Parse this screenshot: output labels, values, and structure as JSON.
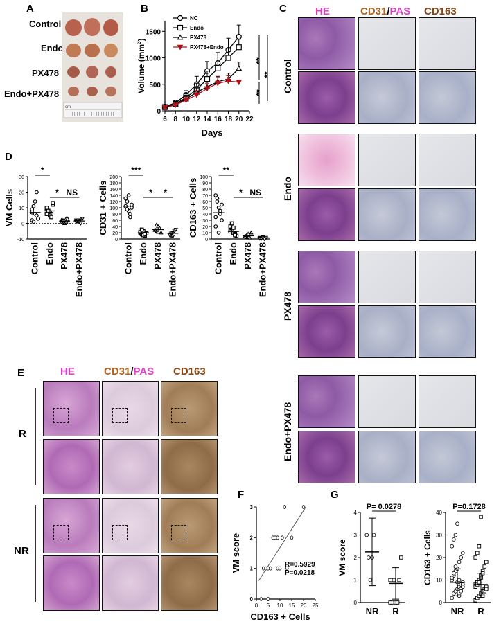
{
  "colors": {
    "he": "#e040c8",
    "cd31": "#b5651d",
    "cd163": "#8b4513",
    "pas": "#e040c8",
    "red_series": "#b0121b"
  },
  "panels": {
    "A": "A",
    "B": "B",
    "C": "C",
    "D": "D",
    "E": "E",
    "F": "F",
    "G": "G"
  },
  "panelA": {
    "rows": [
      "Control",
      "Endo",
      "PX478",
      "Endo+PX478"
    ],
    "ruler": "cm"
  },
  "panelB": {
    "ylabel_main": "Volume",
    "ylabel_unit": "(mm",
    "ylabel_sup": "3",
    "ylabel_close": ")",
    "xlabel": "Days",
    "sig": [
      "**",
      "**",
      "**"
    ],
    "chart_data": {
      "type": "line",
      "x": [
        6,
        8,
        10,
        12,
        14,
        16,
        18,
        20
      ],
      "xticks": [
        "6",
        "8",
        "10",
        "12",
        "14",
        "16",
        "18",
        "20",
        "22"
      ],
      "yticks": [
        "0",
        "500",
        "1000",
        "1500"
      ],
      "xlim": [
        6,
        22
      ],
      "ylim": [
        0,
        1700
      ],
      "series": [
        {
          "name": "NC",
          "marker": "circle",
          "values": [
            80,
            150,
            300,
            500,
            750,
            900,
            1150,
            1400
          ],
          "err": [
            30,
            40,
            80,
            150,
            180,
            200,
            220,
            220
          ]
        },
        {
          "name": "Endo",
          "marker": "square",
          "values": [
            70,
            130,
            250,
            400,
            600,
            800,
            1000,
            1200
          ],
          "err": [
            30,
            40,
            70,
            120,
            150,
            160,
            180,
            150
          ]
        },
        {
          "name": "PX478",
          "marker": "triangle",
          "values": [
            70,
            120,
            220,
            350,
            450,
            550,
            600,
            800
          ],
          "err": [
            20,
            30,
            50,
            80,
            100,
            100,
            110,
            120
          ]
        },
        {
          "name": "PX478+Endo",
          "marker": "triangle-down-filled",
          "values": [
            60,
            110,
            200,
            300,
            420,
            520,
            560,
            540
          ],
          "err": [
            20,
            30,
            50,
            80,
            100,
            110,
            100,
            40
          ]
        }
      ]
    }
  },
  "panelC": {
    "headers": {
      "he": "HE",
      "cd31": "CD31",
      "slash": "/",
      "pas": "PAS",
      "cd163": "CD163"
    },
    "groups": [
      "Control",
      "Endo",
      "PX478",
      "Endo+PX478"
    ]
  },
  "panelD": {
    "chart_data": [
      {
        "type": "scatter",
        "ylabel": "VM Cells",
        "yticks": [
          "-10",
          "0",
          "10",
          "20",
          "30"
        ],
        "ylim": [
          -10,
          30
        ],
        "categories": [
          "Control",
          "Endo",
          "PX478",
          "Endo+PX478"
        ],
        "points": [
          [
            9,
            11,
            6,
            5,
            3,
            2,
            1,
            14,
            20,
            3,
            7
          ],
          [
            9,
            8,
            7,
            6,
            12,
            10,
            8,
            5,
            4,
            13,
            6
          ],
          [
            2,
            1,
            0,
            3,
            2,
            1,
            2,
            0,
            1,
            3
          ],
          [
            2,
            1,
            2,
            0,
            3,
            1,
            2,
            1
          ]
        ],
        "means": [
          7,
          8,
          1.5,
          1.5
        ],
        "sig": [
          {
            "label": "*",
            "from": 0,
            "to": 1
          },
          {
            "label": "*",
            "from": 1,
            "to": 2
          },
          {
            "label": "NS",
            "from": 2,
            "to": 3
          }
        ]
      },
      {
        "type": "scatter",
        "ylabel": "CD31 + Cells",
        "yticks": [
          "0",
          "20",
          "40",
          "60",
          "80",
          "100",
          "120",
          "140",
          "160",
          "180",
          "200"
        ],
        "ylim": [
          0,
          200
        ],
        "categories": [
          "Control",
          "Endo",
          "PX478",
          "Endo+PX478"
        ],
        "points": [
          [
            105,
            120,
            90,
            80,
            110,
            130,
            95,
            140,
            70,
            100
          ],
          [
            20,
            15,
            25,
            10,
            18,
            22,
            30,
            12,
            16
          ],
          [
            30,
            25,
            40,
            35,
            20,
            28,
            45,
            22
          ],
          [
            15,
            10,
            20,
            25,
            30,
            12,
            18,
            8
          ]
        ],
        "means": [
          105,
          20,
          30,
          18
        ],
        "sig": [
          {
            "label": "***",
            "from": 0,
            "to": 1
          },
          {
            "label": "*",
            "from": 1,
            "to": 2
          },
          {
            "label": "*",
            "from": 2,
            "to": 3
          }
        ]
      },
      {
        "type": "scatter",
        "ylabel": "CD163 + Cells",
        "yticks": [
          "0",
          "10",
          "20",
          "30",
          "40",
          "50",
          "60",
          "70",
          "80",
          "90",
          "100"
        ],
        "ylim": [
          0,
          100
        ],
        "categories": [
          "Control",
          "Endo",
          "PX478",
          "Endo+PX478"
        ],
        "points": [
          [
            70,
            60,
            50,
            40,
            30,
            20,
            65,
            10,
            45,
            55,
            35
          ],
          [
            20,
            15,
            10,
            8,
            5,
            12,
            25,
            18,
            6
          ],
          [
            5,
            3,
            8,
            2,
            10,
            4,
            6
          ],
          [
            2,
            1,
            3,
            0,
            2,
            1,
            1,
            2
          ]
        ],
        "means": [
          42,
          12,
          5,
          2
        ],
        "sig": [
          {
            "label": "**",
            "from": 0,
            "to": 1
          },
          {
            "label": "*",
            "from": 1,
            "to": 2
          },
          {
            "label": "NS",
            "from": 2,
            "to": 3
          }
        ]
      }
    ]
  },
  "panelE": {
    "headers": {
      "he": "HE",
      "cd31": "CD31",
      "slash": "/",
      "pas": "PAS",
      "cd163": "CD163"
    },
    "groups": [
      "R",
      "NR"
    ]
  },
  "panelF": {
    "chart_data": {
      "type": "scatter",
      "xlabel": "CD163 + Cells",
      "ylabel": "VM score",
      "xticks": [
        "0",
        "5",
        "10",
        "15",
        "20",
        "25"
      ],
      "yticks": [
        "0",
        "1",
        "2",
        "3"
      ],
      "xlim": [
        0,
        25
      ],
      "ylim": [
        0,
        3
      ],
      "points": [
        [
          2,
          0
        ],
        [
          3,
          1
        ],
        [
          4,
          1
        ],
        [
          5,
          0
        ],
        [
          6,
          1
        ],
        [
          7,
          2
        ],
        [
          8,
          2
        ],
        [
          9,
          1
        ],
        [
          10,
          1
        ],
        [
          11,
          2
        ],
        [
          12,
          3
        ],
        [
          13,
          1
        ],
        [
          15,
          2
        ],
        [
          20,
          3
        ],
        [
          5,
          1
        ],
        [
          9,
          2
        ]
      ],
      "fit": [
        [
          1,
          0.6
        ],
        [
          21,
          3
        ]
      ],
      "r_text": "R=0.5929",
      "p_text": "P=0.0218"
    }
  },
  "panelG": {
    "chart_data": [
      {
        "type": "scatter",
        "ylabel": "VM score",
        "categories": [
          "NR",
          "R"
        ],
        "yticks": [
          "0",
          "1",
          "2",
          "3",
          "4"
        ],
        "ylim": [
          0,
          4
        ],
        "points": [
          [
            3,
            2,
            1,
            2,
            3
          ],
          [
            1,
            0,
            1,
            0,
            0,
            1,
            2,
            0
          ]
        ],
        "means": [
          2.25,
          0.85
        ],
        "sd": [
          1.5,
          0.7
        ],
        "p_text": "P= 0.0278"
      },
      {
        "type": "scatter",
        "ylabel": "CD163 + Cells",
        "categories": [
          "NR",
          "R"
        ],
        "yticks": [
          "0",
          "10",
          "20",
          "30",
          "40"
        ],
        "ylim": [
          0,
          40
        ],
        "points": [
          [
            2,
            4,
            5,
            6,
            7,
            8,
            9,
            10,
            12,
            14,
            15,
            18,
            20,
            22,
            25,
            28,
            30,
            35,
            3,
            6,
            8,
            11,
            13,
            16,
            9,
            10,
            5,
            7
          ],
          [
            1,
            2,
            3,
            4,
            5,
            6,
            7,
            8,
            9,
            10,
            12,
            14,
            16,
            18,
            20,
            22,
            25,
            38,
            3,
            5,
            6,
            7,
            8,
            9,
            11,
            13
          ]
        ],
        "means": [
          9,
          8
        ],
        "sd": [
          6,
          5
        ],
        "p_text": "P=0.1728"
      }
    ]
  }
}
